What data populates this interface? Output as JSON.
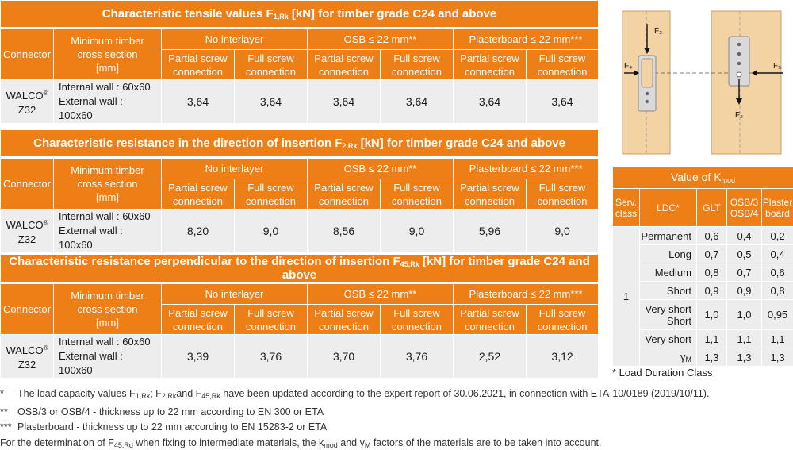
{
  "tables": [
    {
      "title_pre": "Characteristic tensile values F",
      "title_sub": "1,Rk",
      "title_post": " [kN] for timber grade C24 and above",
      "values": [
        "3,64",
        "3,64",
        "3,64",
        "3,64",
        "3,64",
        "3,64"
      ]
    },
    {
      "title_pre": "Characteristic resistance in the direction of insertion F",
      "title_sub": "2,Rk",
      "title_post": " [kN] for timber grade C24 and above",
      "values": [
        "8,20",
        "9,0",
        "8,56",
        "9,0",
        "5,96",
        "9,0"
      ]
    },
    {
      "title_pre": "Characteristic resistance perpendicular to the direction of insertion F",
      "title_sub": "45,Rk",
      "title_post": " [kN] for timber grade C24 and above",
      "values": [
        "3,39",
        "3,76",
        "3,70",
        "3,76",
        "2,52",
        "3,12"
      ]
    }
  ],
  "headers": {
    "connector": "Connector",
    "min_section_1": "Minimum timber",
    "min_section_2": "cross section",
    "min_section_3": "[mm]",
    "no_interlayer": "No interlayer",
    "osb": "OSB ≤ 22 mm**",
    "plasterboard": "Plasterboard ≤ 22 mm***",
    "partial_1": "Partial screw",
    "partial_2": "connection",
    "full_1": "Full screw",
    "full_2": "connection"
  },
  "row": {
    "connector_name": "WALCO",
    "connector_reg": "®",
    "connector_model": "Z32",
    "internal_wall": "Internal wall : 60x60",
    "external_wall": "External wall : 100x60"
  },
  "kmod": {
    "title_pre": "Value of K",
    "title_sub": "mod",
    "h_serv_1": "Serv.",
    "h_serv_2": "class",
    "h_ldc": "LDC*",
    "h_glt": "GLT",
    "h_osb_1": "OSB/3",
    "h_osb_2": "OSB/4",
    "h_plaster_1": "Plaster",
    "h_plaster_2": "board",
    "serv_class": "1",
    "rows": [
      {
        "ldc": "Permanent",
        "glt": "0,6",
        "osb": "0,4",
        "plaster": "0,2"
      },
      {
        "ldc": "Long",
        "glt": "0,7",
        "osb": "0,5",
        "plaster": "0,4"
      },
      {
        "ldc": "Medium",
        "glt": "0,8",
        "osb": "0,7",
        "plaster": "0,6"
      },
      {
        "ldc": "Short",
        "glt": "0,9",
        "osb": "0,9",
        "plaster": "0,8"
      },
      {
        "ldc_1": "Very short",
        "ldc_2": "Short",
        "glt": "1,0",
        "osb": "1,0",
        "plaster": "0,95"
      },
      {
        "ldc": "Very short",
        "glt": "1,1",
        "osb": "1,1",
        "plaster": "1,1"
      },
      {
        "ldc_sym": "γ",
        "ldc_sub": "M",
        "glt": "1,3",
        "osb": "1,3",
        "plaster": "1,3"
      }
    ],
    "footnote": "* Load Duration Class"
  },
  "figure": {
    "f2_top": "F₂",
    "f4": "F₄",
    "f5": "F₅",
    "f2_bottom": "F₂"
  },
  "notes": {
    "n1_mark": "*",
    "n1_a": "The load capacity values F",
    "n1_sub1": "1,Rk",
    "n1_b": "; F",
    "n1_sub2": "2,Rk",
    "n1_c": "and F",
    "n1_sub3": "45,Rk",
    "n1_d": " have been updated according to the expert report of 30.06.2021, in connection with ETA-10/0189 (2019/10/11).",
    "n2_mark": "**",
    "n2": "OSB/3 or OSB/4 - thickness up to 22 mm according to EN 300 or ETA",
    "n3_mark": "***",
    "n3": "Plasterboard - thickness up to 22 mm according to EN 15283-2 or ETA",
    "n4_a": "For the determination of F",
    "n4_sub1": "45,Rd",
    "n4_b": "  when fixing to intermediate materials, the k",
    "n4_sub2": "mod",
    "n4_c": " and γ",
    "n4_sub3": "M",
    "n4_d": " factors of the materials are to be taken into account."
  },
  "colors": {
    "accent": "#ee7e16",
    "cell_bg": "#ededed",
    "wood": "#f3d2a3"
  }
}
